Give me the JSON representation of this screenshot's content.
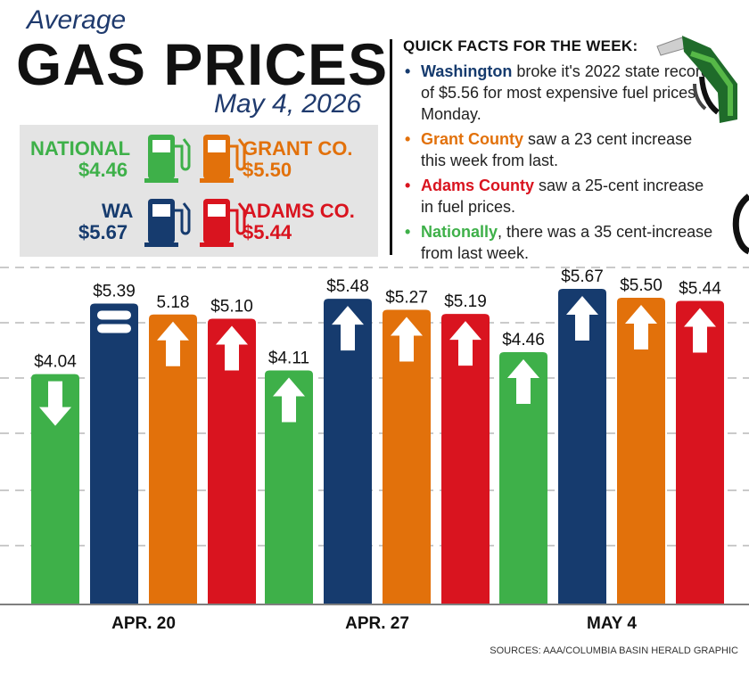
{
  "header": {
    "subtitle": "Average",
    "title": "GAS PRICES",
    "date": "May 4, 2026"
  },
  "legend": [
    {
      "name": "NATIONAL",
      "price": "$4.46",
      "color": "#3eb049",
      "side": "left"
    },
    {
      "name": "GRANT CO.",
      "price": "$5.50",
      "color": "#e2710b",
      "side": "right"
    },
    {
      "name": "WA",
      "price": "$5.67",
      "color": "#163b6e",
      "side": "left"
    },
    {
      "name": "ADAMS CO.",
      "price": "$5.44",
      "color": "#d9141f",
      "side": "right"
    }
  ],
  "facts": {
    "title": "QUICK FACTS FOR THE WEEK:",
    "items": [
      {
        "lead": "Washington",
        "rest": " broke it's 2022 state record of $5.56 for most expensive fuel prices Monday.",
        "color": "#163b6e"
      },
      {
        "lead": "Grant County",
        "rest": " saw a 23 cent increase this week from last.",
        "color": "#e2710b"
      },
      {
        "lead": "Adams County",
        "rest": " saw a 25-cent increase  in fuel prices.",
        "color": "#d9141f"
      },
      {
        "lead": "Nationally",
        "rest": ", there was a 35 cent-increase from last week.",
        "color": "#3eb049"
      }
    ]
  },
  "source": "SOURCES: AAA/COLUMBIA BASIN HERALD GRAPHIC",
  "colors": {
    "national": "#3eb049",
    "wa": "#163b6e",
    "grant": "#e2710b",
    "adams": "#d9141f"
  },
  "chart_data": {
    "type": "bar",
    "categories": [
      "APR. 20",
      "APR. 27",
      "MAY 4"
    ],
    "series": [
      {
        "name": "NATIONAL",
        "color": "#3eb049",
        "values": [
          4.04,
          4.11,
          4.46
        ],
        "labels": [
          "$4.04",
          "$4.11",
          "$4.46"
        ],
        "trend": [
          "down",
          "up",
          "up"
        ]
      },
      {
        "name": "WA",
        "color": "#163b6e",
        "values": [
          5.39,
          5.48,
          5.67
        ],
        "labels": [
          "$5.39",
          "$5.48",
          "$5.67"
        ],
        "trend": [
          "equal",
          "up",
          "up"
        ]
      },
      {
        "name": "GRANT CO.",
        "color": "#e2710b",
        "values": [
          5.18,
          5.27,
          5.5
        ],
        "labels": [
          "5.18",
          "$5.27",
          "$5.50"
        ],
        "trend": [
          "up",
          "up",
          "up"
        ]
      },
      {
        "name": "ADAMS CO.",
        "color": "#d9141f",
        "values": [
          5.1,
          5.19,
          5.44
        ],
        "labels": [
          "$5.10",
          "$5.19",
          "$5.44"
        ],
        "trend": [
          "up",
          "up",
          "up"
        ]
      }
    ],
    "grid": true
  }
}
